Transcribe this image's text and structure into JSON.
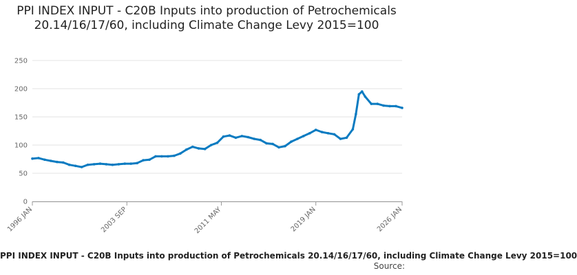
{
  "chart_data": {
    "type": "line",
    "title": "PPI INDEX INPUT - C20B Inputs into production of Petrochemicals 20.14/16/17/60, including Climate Change Levy 2015=100",
    "xlabel": "",
    "ylabel": "",
    "ylim": [
      0,
      250
    ],
    "yticks": [
      0,
      50,
      100,
      150,
      200,
      250
    ],
    "xlim": [
      "1996-01",
      "2026-01"
    ],
    "xticks": [
      "1996 JAN",
      "2003 SEP",
      "2011 MAY",
      "2019 JAN",
      "2026 JAN"
    ],
    "grid": true,
    "legend": "bottom",
    "series": [
      {
        "name": "PPI INDEX INPUT - C20B Inputs into production of Petrochemicals 20.14/16/17/60, including Climate Change Levy 2015=100",
        "color": "#0a7bc1",
        "x": [
          "1996-01",
          "1996-07",
          "1997-01",
          "1997-07",
          "1998-01",
          "1998-07",
          "1999-01",
          "1999-07",
          "2000-01",
          "2000-07",
          "2001-01",
          "2001-07",
          "2002-01",
          "2002-07",
          "2003-01",
          "2003-07",
          "2004-01",
          "2004-07",
          "2005-01",
          "2005-07",
          "2006-01",
          "2006-07",
          "2007-01",
          "2007-07",
          "2008-01",
          "2008-07",
          "2009-01",
          "2009-07",
          "2010-01",
          "2010-07",
          "2011-01",
          "2011-07",
          "2012-01",
          "2012-07",
          "2013-01",
          "2013-07",
          "2014-01",
          "2014-07",
          "2015-01",
          "2015-07",
          "2016-01",
          "2016-07",
          "2017-01",
          "2017-07",
          "2018-01",
          "2018-07",
          "2019-01",
          "2019-07",
          "2020-01",
          "2020-07",
          "2021-01",
          "2021-07",
          "2022-01",
          "2022-04",
          "2022-07",
          "2022-10",
          "2023-01",
          "2023-07",
          "2024-01",
          "2024-07",
          "2025-01",
          "2025-07",
          "2026-01"
        ],
        "values": [
          76,
          77,
          74,
          72,
          70,
          69,
          65,
          63,
          61,
          65,
          66,
          67,
          66,
          65,
          66,
          67,
          67,
          68,
          73,
          74,
          80,
          80,
          80,
          81,
          85,
          92,
          97,
          94,
          93,
          100,
          104,
          115,
          117,
          113,
          116,
          114,
          111,
          109,
          103,
          102,
          96,
          98,
          106,
          111,
          116,
          121,
          127,
          123,
          121,
          119,
          111,
          113,
          128,
          155,
          190,
          195,
          186,
          173,
          173,
          170,
          169,
          169,
          166
        ]
      }
    ]
  },
  "legend": {
    "text": "PPI INDEX INPUT - C20B Inputs into production of Petrochemicals 20.14/16/17/60, including Climate Change Levy 2015=100"
  },
  "footer": {
    "source_label": "Source:"
  }
}
